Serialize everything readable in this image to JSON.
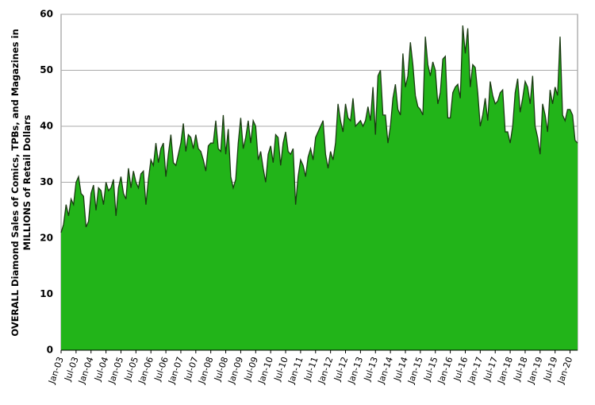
{
  "chart_data": {
    "type": "area",
    "y_label": [
      "OVERALL Diamond Sales of Comics, TPBs, and Magazines in",
      "MILLIONS of Retail Dollars"
    ],
    "categories": [
      "Jan-03",
      null,
      null,
      null,
      null,
      null,
      "Jul-03",
      null,
      null,
      null,
      null,
      null,
      "Jan-04",
      null,
      null,
      null,
      null,
      null,
      "Jul-04",
      null,
      null,
      null,
      null,
      null,
      "Jan-05",
      null,
      null,
      null,
      null,
      null,
      "Jul-05",
      null,
      null,
      null,
      null,
      null,
      "Jan-06",
      null,
      null,
      null,
      null,
      null,
      "Jul-06",
      null,
      null,
      null,
      null,
      null,
      "Jan-07",
      null,
      null,
      null,
      null,
      null,
      "Jul-07",
      null,
      null,
      null,
      null,
      null,
      "Jan-08",
      null,
      null,
      null,
      null,
      null,
      "Jul-08",
      null,
      null,
      null,
      null,
      null,
      "Jan-09",
      null,
      null,
      null,
      null,
      null,
      "Jul-09",
      null,
      null,
      null,
      null,
      null,
      "Jan-10",
      null,
      null,
      null,
      null,
      null,
      "Jul-10",
      null,
      null,
      null,
      null,
      null,
      "Jan-11",
      null,
      null,
      null,
      null,
      null,
      "Jul-11",
      null,
      null,
      null,
      null,
      null,
      "Jan-12",
      null,
      null,
      null,
      null,
      null,
      "Jul-12",
      null,
      null,
      null,
      null,
      null,
      "Jan-13",
      null,
      null,
      null,
      null,
      null,
      "Jul-13",
      null,
      null,
      null,
      null,
      null,
      "Jan-14",
      null,
      null,
      null,
      null,
      null,
      "Jul-14",
      null,
      null,
      null,
      null,
      null,
      "Jan-15",
      null,
      null,
      null,
      null,
      null,
      "Jul-15",
      null,
      null,
      null,
      null,
      null,
      "Jan-16",
      null,
      null,
      null,
      null,
      null,
      "Jul-16",
      null,
      null,
      null,
      null,
      null,
      "Jan-17",
      null,
      null,
      null,
      null,
      null,
      "Jul-17",
      null,
      null,
      null,
      null,
      null,
      "Jan-18",
      null,
      null,
      null,
      null,
      null,
      "Jul-18",
      null,
      null,
      null,
      null,
      null,
      "Jan-19",
      null,
      null,
      null,
      null,
      null,
      "Jul-19",
      null,
      null,
      null,
      null,
      null,
      "Jan-20",
      null,
      null,
      null
    ],
    "values": [
      21,
      22.5,
      26,
      24,
      27,
      26,
      30,
      31,
      28,
      27.5,
      22,
      23,
      28,
      29.5,
      25,
      29,
      28.5,
      26,
      30,
      28.5,
      29,
      30.5,
      24,
      29,
      31,
      28,
      27,
      32.5,
      29,
      32,
      30,
      29,
      31.5,
      32,
      26,
      30.5,
      34,
      33,
      37,
      33.5,
      36,
      37,
      31,
      35,
      38.5,
      33.5,
      33,
      35,
      37,
      40.5,
      35.5,
      38.5,
      38,
      36,
      38.5,
      36,
      35.5,
      34,
      32,
      36.5,
      37,
      37,
      41,
      36,
      35.5,
      42,
      35,
      39.5,
      31,
      29,
      30.5,
      37,
      41.5,
      36,
      38,
      41,
      37,
      41,
      40,
      34,
      35.5,
      32.5,
      30,
      35,
      36.5,
      33.5,
      38.5,
      38,
      33,
      37,
      39,
      35.5,
      35,
      36,
      26,
      31,
      34,
      33,
      31,
      34.5,
      36,
      34,
      38,
      39,
      40,
      41,
      35,
      32.5,
      35.5,
      34,
      37,
      44,
      41,
      39,
      44,
      41.5,
      41,
      45,
      40,
      40.5,
      41,
      40,
      41,
      43.5,
      41,
      47,
      38.5,
      49,
      50,
      42,
      42,
      37,
      40,
      45,
      47.5,
      43,
      42,
      53,
      47,
      49,
      55,
      51,
      45.5,
      43.5,
      43,
      42,
      56,
      51,
      49,
      51.5,
      50,
      44,
      46,
      52,
      52.5,
      41.5,
      41.5,
      46,
      47,
      47.5,
      45,
      58,
      53,
      57.5,
      47,
      51,
      50.5,
      46,
      40,
      42,
      45,
      41,
      48,
      45.5,
      44,
      44.5,
      46,
      46.5,
      39,
      39,
      37,
      40,
      46,
      48.5,
      42.5,
      45,
      48,
      47,
      44,
      49,
      40,
      38,
      35,
      44,
      42,
      39,
      46.5,
      44,
      47,
      45.5,
      56,
      42,
      41,
      43,
      43,
      42,
      37.5,
      37
    ],
    "color": "#22b419",
    "edge_color": "#1a3a12",
    "ylim": [
      0,
      60
    ],
    "yticks": [
      0,
      10,
      20,
      30,
      40,
      50,
      60
    ],
    "grid": true
  }
}
